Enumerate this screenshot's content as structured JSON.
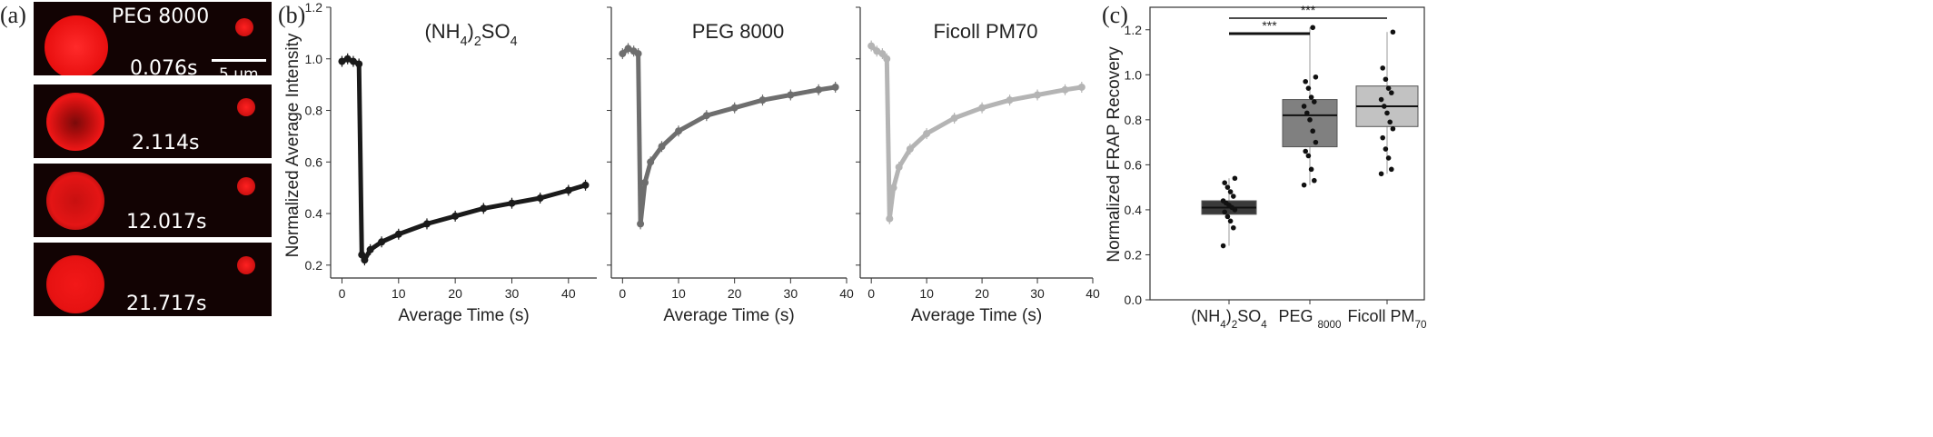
{
  "panel_labels": {
    "a": "(a)",
    "b": "(b)",
    "c": "(c)"
  },
  "panel_a": {
    "condition": "PEG 8000",
    "scalebar_label": "5 μm",
    "frames": [
      {
        "time": "0.076s",
        "bleach": 0.0
      },
      {
        "time": "2.114s",
        "bleach": 0.9
      },
      {
        "time": "12.017s",
        "bleach": 0.4
      },
      {
        "time": "21.717s",
        "bleach": 0.1
      }
    ]
  },
  "chart_data": [
    {
      "type": "line",
      "title": "(NH4)2SO4",
      "xlabel": "Average Time (s)",
      "ylabel": "Normalized Average Intensity",
      "xlim": [
        -2,
        45
      ],
      "ylim": [
        0.15,
        1.2
      ],
      "xticks": [
        0,
        10,
        20,
        30,
        40
      ],
      "yticks": [
        0.2,
        0.4,
        0.6,
        0.8,
        1.0,
        1.2
      ],
      "color": "#1a1a1a",
      "series": [
        {
          "x": [
            0,
            1,
            2,
            3,
            3.5,
            4,
            5,
            7,
            10,
            15,
            20,
            25,
            30,
            35,
            40,
            43
          ],
          "y": [
            0.99,
            1.0,
            0.99,
            0.98,
            0.24,
            0.22,
            0.26,
            0.29,
            0.32,
            0.36,
            0.39,
            0.42,
            0.44,
            0.46,
            0.49,
            0.51
          ]
        }
      ]
    },
    {
      "type": "line",
      "title": "PEG 8000",
      "xlabel": "Average Time (s)",
      "ylabel": "",
      "xlim": [
        -2,
        40
      ],
      "ylim": [
        0.15,
        1.2
      ],
      "xticks": [
        0,
        10,
        20,
        30,
        40
      ],
      "color": "#6e6e6e",
      "series": [
        {
          "x": [
            0,
            1,
            2,
            2.8,
            3.2,
            4,
            5,
            7,
            10,
            15,
            20,
            25,
            30,
            35,
            38
          ],
          "y": [
            1.02,
            1.04,
            1.03,
            1.02,
            0.36,
            0.52,
            0.6,
            0.66,
            0.72,
            0.78,
            0.81,
            0.84,
            0.86,
            0.88,
            0.89
          ]
        }
      ]
    },
    {
      "type": "line",
      "title": "Ficoll PM70",
      "xlabel": "Average Time (s)",
      "ylabel": "",
      "xlim": [
        -2,
        40
      ],
      "ylim": [
        0.15,
        1.2
      ],
      "xticks": [
        0,
        10,
        20,
        30,
        40
      ],
      "color": "#b4b4b4",
      "series": [
        {
          "x": [
            0,
            1,
            2,
            2.8,
            3.3,
            4,
            5,
            7,
            10,
            15,
            20,
            25,
            30,
            35,
            38
          ],
          "y": [
            1.05,
            1.03,
            1.02,
            1.0,
            0.38,
            0.5,
            0.58,
            0.65,
            0.71,
            0.77,
            0.81,
            0.84,
            0.86,
            0.88,
            0.89
          ]
        }
      ]
    },
    {
      "type": "box",
      "title": "",
      "xlabel": "",
      "ylabel": "Normalized FRAP Recovery",
      "ylim": [
        0.0,
        1.3
      ],
      "yticks": [
        0.0,
        0.2,
        0.4,
        0.6,
        0.8,
        1.0,
        1.2
      ],
      "categories": [
        "(NH4)2SO4",
        "PEG 8000",
        "Ficoll PM70"
      ],
      "boxes": [
        {
          "q1": 0.38,
          "median": 0.41,
          "q3": 0.44,
          "whisker_low": 0.24,
          "whisker_high": 0.54,
          "color": "#3a3a3a",
          "points": [
            0.24,
            0.32,
            0.35,
            0.37,
            0.39,
            0.4,
            0.41,
            0.42,
            0.43,
            0.44,
            0.46,
            0.48,
            0.5,
            0.52,
            0.54
          ]
        },
        {
          "q1": 0.68,
          "median": 0.82,
          "q3": 0.89,
          "whisker_low": 0.51,
          "whisker_high": 1.21,
          "color": "#808080",
          "points": [
            0.51,
            0.53,
            0.58,
            0.64,
            0.66,
            0.7,
            0.75,
            0.8,
            0.83,
            0.86,
            0.88,
            0.9,
            0.94,
            0.97,
            0.99,
            1.21
          ]
        },
        {
          "q1": 0.77,
          "median": 0.86,
          "q3": 0.95,
          "whisker_low": 0.56,
          "whisker_high": 1.19,
          "color": "#c2c2c2",
          "points": [
            0.56,
            0.58,
            0.63,
            0.67,
            0.72,
            0.76,
            0.79,
            0.83,
            0.86,
            0.89,
            0.92,
            0.94,
            0.98,
            1.03,
            1.19
          ]
        }
      ],
      "significance": [
        {
          "from": 0,
          "to": 1,
          "label": "***"
        },
        {
          "from": 0,
          "to": 2,
          "label": "***"
        }
      ]
    }
  ]
}
